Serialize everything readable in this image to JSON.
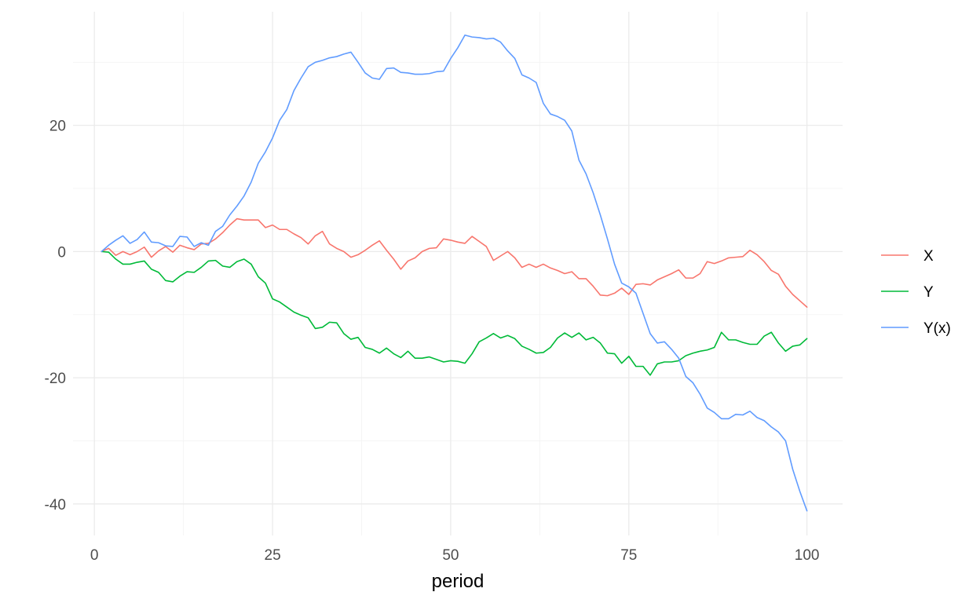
{
  "chart_data": {
    "type": "line",
    "title": "",
    "xlabel": "period",
    "ylabel": "",
    "xlim": [
      -3,
      105
    ],
    "ylim": [
      -45,
      38
    ],
    "x_ticks": [
      0,
      25,
      50,
      75,
      100
    ],
    "y_ticks": [
      -40,
      -20,
      0,
      20
    ],
    "x_tick_labels": [
      "0",
      "25",
      "50",
      "75",
      "100"
    ],
    "y_tick_labels": [
      "-40",
      "-20",
      "0",
      "20"
    ],
    "grid": true,
    "legend_position": "right",
    "x": [
      1,
      2,
      3,
      4,
      5,
      6,
      7,
      8,
      9,
      10,
      11,
      12,
      13,
      14,
      15,
      16,
      17,
      18,
      19,
      20,
      21,
      22,
      23,
      24,
      25,
      26,
      27,
      28,
      29,
      30,
      31,
      32,
      33,
      34,
      35,
      36,
      37,
      38,
      39,
      40,
      41,
      42,
      43,
      44,
      45,
      46,
      47,
      48,
      49,
      50,
      51,
      52,
      53,
      54,
      55,
      56,
      57,
      58,
      59,
      60,
      61,
      62,
      63,
      64,
      65,
      66,
      67,
      68,
      69,
      70,
      71,
      72,
      73,
      74,
      75,
      76,
      77,
      78,
      79,
      80,
      81,
      82,
      83,
      84,
      85,
      86,
      87,
      88,
      89,
      90,
      91,
      92,
      93,
      94,
      95,
      96,
      97,
      98,
      99,
      100
    ],
    "series": [
      {
        "name": "X",
        "color": "#F8766D",
        "values": [
          0,
          0.5,
          -0.6,
          0,
          -0.5,
          0,
          0.7,
          -0.9,
          0.1,
          0.8,
          -0.1,
          1,
          0.6,
          0.3,
          1.2,
          1.3,
          2,
          3,
          4.2,
          5.2,
          5,
          5,
          5,
          3.8,
          4.2,
          3.5,
          3.5,
          2.8,
          2.2,
          1.2,
          2.5,
          3.2,
          1.2,
          0.5,
          0,
          -0.9,
          -0.5,
          0.2,
          1,
          1.7,
          0.2,
          -1.2,
          -2.8,
          -1.5,
          -1,
          0,
          0.5,
          0.6,
          2,
          1.8,
          1.5,
          1.3,
          2.4,
          1.6,
          0.8,
          -1.4,
          -0.7,
          0,
          -1,
          -2.5,
          -2,
          -2.5,
          -2,
          -2.6,
          -3,
          -3.5,
          -3.2,
          -4.3,
          -4.3,
          -5.5,
          -6.9,
          -7,
          -6.6,
          -5.8,
          -6.8,
          -5.2,
          -5.1,
          -5.3,
          -4.5,
          -4,
          -3.5,
          -2.9,
          -4.2,
          -4.2,
          -3.5,
          -1.6,
          -1.9,
          -1.5,
          -1,
          -0.9,
          -0.8,
          0.2,
          -0.5,
          -1.6,
          -3,
          -3.6,
          -5.5,
          -6.8,
          -7.8,
          -8.8
        ]
      },
      {
        "name": "Y",
        "color": "#00BA38",
        "values": [
          0,
          -0.1,
          -1.2,
          -2,
          -2,
          -1.7,
          -1.5,
          -2.8,
          -3.3,
          -4.6,
          -4.8,
          -3.9,
          -3.2,
          -3.3,
          -2.5,
          -1.5,
          -1.4,
          -2.3,
          -2.5,
          -1.6,
          -1.2,
          -2,
          -4,
          -5,
          -7.5,
          -8,
          -8.8,
          -9.6,
          -10.1,
          -10.5,
          -12.2,
          -12,
          -11.2,
          -11.3,
          -13,
          -13.9,
          -13.6,
          -15.2,
          -15.5,
          -16.1,
          -15.3,
          -16.2,
          -16.8,
          -15.8,
          -16.9,
          -16.9,
          -16.7,
          -17.1,
          -17.5,
          -17.3,
          -17.4,
          -17.7,
          -16.2,
          -14.3,
          -13.7,
          -13,
          -13.7,
          -13.3,
          -13.8,
          -15,
          -15.5,
          -16.1,
          -16,
          -15.2,
          -13.7,
          -12.9,
          -13.6,
          -12.9,
          -14,
          -13.6,
          -14.5,
          -16.1,
          -16.2,
          -17.7,
          -16.6,
          -18.2,
          -18.2,
          -19.6,
          -17.8,
          -17.5,
          -17.5,
          -17.3,
          -16.5,
          -16.1,
          -15.8,
          -15.6,
          -15.2,
          -12.8,
          -14,
          -14,
          -14.4,
          -14.7,
          -14.7,
          -13.4,
          -12.8,
          -14.5,
          -15.8,
          -15,
          -14.8,
          -13.8
        ]
      },
      {
        "name": "Y(x)",
        "color": "#619CFF",
        "values": [
          0,
          1,
          1.8,
          2.5,
          1.3,
          1.9,
          3.1,
          1.5,
          1.4,
          0.9,
          0.8,
          2.4,
          2.3,
          0.8,
          1.4,
          1,
          3.2,
          4,
          5.8,
          7.2,
          8.8,
          11,
          14,
          15.8,
          18,
          20.8,
          22.5,
          25.5,
          27.5,
          29.3,
          30,
          30.3,
          30.7,
          30.9,
          31.3,
          31.6,
          30,
          28.3,
          27.5,
          27.3,
          29,
          29.1,
          28.4,
          28.3,
          28.1,
          28.1,
          28.2,
          28.5,
          28.6,
          30.6,
          32.3,
          34.3,
          34,
          33.9,
          33.7,
          33.8,
          33.2,
          31.8,
          30.6,
          28,
          27.5,
          26.8,
          23.5,
          21.8,
          21.4,
          20.8,
          19.1,
          14.5,
          12.3,
          9.3,
          5.8,
          2,
          -2,
          -5,
          -5.6,
          -6.6,
          -9.8,
          -13,
          -14.5,
          -14.3,
          -15.5,
          -16.9,
          -19.8,
          -20.8,
          -22.6,
          -24.8,
          -25.5,
          -26.5,
          -26.5,
          -25.8,
          -25.9,
          -25.3,
          -26.3,
          -26.8,
          -27.8,
          -28.6,
          -30,
          -34.5,
          -38,
          -41.1
        ]
      }
    ]
  }
}
